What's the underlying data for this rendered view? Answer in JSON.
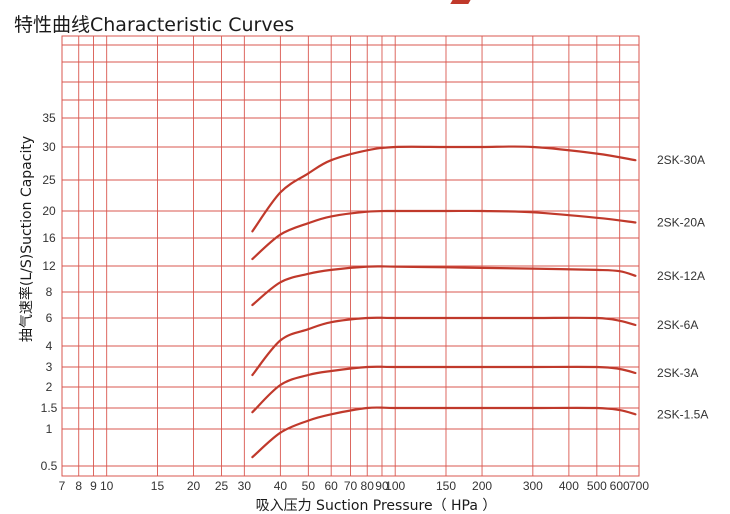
{
  "title": "特性曲线Characteristic Curves",
  "colors": {
    "grid": "#d9574f",
    "curve": "#c0392b",
    "text": "#333333"
  },
  "chart_data": {
    "type": "line",
    "title": "特性曲线Characteristic Curves",
    "xlabel": "吸入压力 Suction Pressure（ HPa ）",
    "ylabel": "抽气速率(L/S)Suction Capacity",
    "x_scale": "log",
    "xlim": [
      7,
      700
    ],
    "y_scale": "nonlinear (piecewise by tick labels)",
    "ylim": [
      0.5,
      35
    ],
    "grid": true,
    "x_ticks": [
      7,
      8,
      9,
      10,
      15,
      20,
      25,
      30,
      40,
      50,
      60,
      70,
      80,
      90,
      100,
      150,
      200,
      300,
      400,
      500,
      600,
      700
    ],
    "x_tick_labels": [
      "7",
      "8",
      "9",
      "10",
      "15",
      "20",
      "25",
      "30",
      "40",
      "50",
      "60",
      "70",
      "80",
      "90",
      "100",
      "150",
      "200",
      "300",
      "400",
      "500",
      "600",
      "700"
    ],
    "y_ticks": [
      0.5,
      1,
      1.5,
      2,
      3,
      4,
      6,
      8,
      12,
      16,
      20,
      25,
      30,
      35
    ],
    "y_tick_labels": [
      "0.5",
      "1",
      "1.5",
      "2",
      "3",
      "4",
      "6",
      "8",
      "12",
      "16",
      "20",
      "25",
      "30",
      "35"
    ],
    "series": [
      {
        "name": "2SK-30A",
        "x": [
          32,
          40,
          50,
          60,
          80,
          100,
          150,
          200,
          300,
          500,
          680
        ],
        "y": [
          17,
          23,
          26,
          28,
          29.5,
          30,
          30,
          30,
          30,
          29,
          28
        ]
      },
      {
        "name": "2SK-20A",
        "x": [
          32,
          40,
          50,
          60,
          80,
          100,
          150,
          200,
          300,
          500,
          680
        ],
        "y": [
          13,
          16.5,
          18.2,
          19.2,
          19.9,
          20,
          20,
          20,
          19.8,
          19,
          18.3
        ]
      },
      {
        "name": "2SK-12A",
        "x": [
          32,
          40,
          50,
          60,
          80,
          100,
          150,
          200,
          300,
          500,
          600,
          680
        ],
        "y": [
          7,
          9.5,
          10.8,
          11.4,
          11.9,
          11.9,
          11.8,
          11.7,
          11.6,
          11.4,
          11.2,
          10.5
        ]
      },
      {
        "name": "2SK-6A",
        "x": [
          32,
          40,
          50,
          60,
          80,
          100,
          150,
          200,
          300,
          500,
          600,
          680
        ],
        "y": [
          2.6,
          4.4,
          5.2,
          5.7,
          6,
          6,
          6,
          6,
          6,
          6,
          5.8,
          5.5
        ]
      },
      {
        "name": "2SK-3A",
        "x": [
          32,
          40,
          50,
          60,
          80,
          100,
          150,
          200,
          300,
          500,
          600,
          680
        ],
        "y": [
          1.4,
          2.1,
          2.6,
          2.8,
          3,
          3,
          3,
          3,
          3,
          3,
          2.9,
          2.7
        ]
      },
      {
        "name": "2SK-1.5A",
        "x": [
          32,
          40,
          50,
          60,
          80,
          100,
          150,
          200,
          300,
          500,
          600,
          680
        ],
        "y": [
          0.62,
          0.95,
          1.2,
          1.35,
          1.5,
          1.5,
          1.5,
          1.5,
          1.5,
          1.5,
          1.45,
          1.35
        ]
      }
    ]
  }
}
